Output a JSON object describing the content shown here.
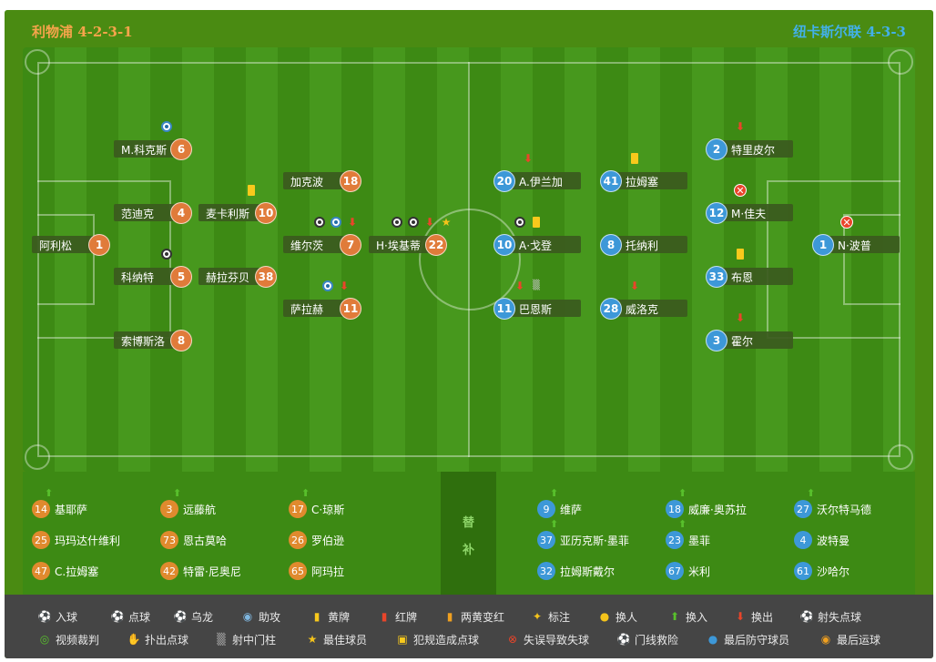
{
  "header": {
    "home": "利物浦 4-2-3-1",
    "away": "纽卡斯尔联 4-3-3"
  },
  "home_players": [
    {
      "num": "1",
      "name": "阿利松",
      "events": []
    },
    {
      "num": "6",
      "name": "M.科克斯",
      "events": [
        "assist"
      ]
    },
    {
      "num": "4",
      "name": "范迪克",
      "events": []
    },
    {
      "num": "5",
      "name": "科纳特",
      "events": [
        "goal"
      ]
    },
    {
      "num": "8",
      "name": "索博斯洛",
      "events": []
    },
    {
      "num": "10",
      "name": "麦卡利斯",
      "events": [
        "yellow"
      ]
    },
    {
      "num": "38",
      "name": "赫拉芬贝",
      "events": []
    },
    {
      "num": "18",
      "name": "加克波",
      "events": []
    },
    {
      "num": "7",
      "name": "维尔茨",
      "events": [
        "goal",
        "assist",
        "out"
      ]
    },
    {
      "num": "11",
      "name": "萨拉赫",
      "events": [
        "assist",
        "out"
      ]
    },
    {
      "num": "22",
      "name": "H·埃基蒂",
      "events": [
        "goal",
        "goal",
        "out",
        "star"
      ]
    }
  ],
  "away_players": [
    {
      "num": "1",
      "name": "N·波普",
      "events": [
        "error"
      ]
    },
    {
      "num": "2",
      "name": "特里皮尔",
      "events": [
        "out"
      ]
    },
    {
      "num": "12",
      "name": "M·佳夫",
      "events": [
        "error"
      ]
    },
    {
      "num": "33",
      "name": "布恩",
      "events": [
        "yellow"
      ]
    },
    {
      "num": "3",
      "name": "霍尔",
      "events": [
        "out"
      ]
    },
    {
      "num": "41",
      "name": "拉姆塞",
      "events": [
        "yellow"
      ]
    },
    {
      "num": "8",
      "name": "托纳利",
      "events": []
    },
    {
      "num": "28",
      "name": "威洛克",
      "events": [
        "out"
      ]
    },
    {
      "num": "20",
      "name": "A.伊兰加",
      "events": [
        "out"
      ]
    },
    {
      "num": "10",
      "name": "A·戈登",
      "events": [
        "goal",
        "yellow"
      ]
    },
    {
      "num": "11",
      "name": "巴恩斯",
      "events": [
        "out",
        "post"
      ]
    }
  ],
  "subs": {
    "title": [
      "替",
      "补"
    ],
    "home": [
      {
        "num": "14",
        "name": "基耶萨",
        "in": true
      },
      {
        "num": "3",
        "name": "远藤航",
        "in": true
      },
      {
        "num": "17",
        "name": "C·琼斯",
        "in": true
      },
      {
        "num": "25",
        "name": "玛玛达什维利",
        "in": false
      },
      {
        "num": "73",
        "name": "恩古莫哈",
        "in": false
      },
      {
        "num": "26",
        "name": "罗伯逊",
        "in": false
      },
      {
        "num": "47",
        "name": "C.拉姆塞",
        "in": false
      },
      {
        "num": "42",
        "name": "特雷·尼奥尼",
        "in": false
      },
      {
        "num": "65",
        "name": "阿玛拉",
        "in": false
      }
    ],
    "away": [
      {
        "num": "9",
        "name": "维萨",
        "in": true
      },
      {
        "num": "18",
        "name": "威廉·奥苏拉",
        "in": true
      },
      {
        "num": "27",
        "name": "沃尔特马德",
        "in": true
      },
      {
        "num": "37",
        "name": "亚历克斯·墨菲",
        "in": true
      },
      {
        "num": "23",
        "name": "墨菲",
        "in": true
      },
      {
        "num": "4",
        "name": "波特曼",
        "in": false
      },
      {
        "num": "32",
        "name": "拉姆斯戴尔",
        "in": false
      },
      {
        "num": "67",
        "name": "米利",
        "in": false
      },
      {
        "num": "61",
        "name": "沙哈尔",
        "in": false
      }
    ]
  },
  "legend": [
    {
      "icon": "goal",
      "label": "入球"
    },
    {
      "icon": "penalty",
      "label": "点球"
    },
    {
      "icon": "own-goal",
      "label": "乌龙"
    },
    {
      "icon": "assist",
      "label": "助攻"
    },
    {
      "icon": "yellow",
      "label": "黄牌"
    },
    {
      "icon": "red",
      "label": "红牌"
    },
    {
      "icon": "two-yellow",
      "label": "两黄变红"
    },
    {
      "icon": "mark",
      "label": "标注"
    },
    {
      "icon": "sub",
      "label": "换人"
    },
    {
      "icon": "in",
      "label": "换入"
    },
    {
      "icon": "out",
      "label": "换出"
    },
    {
      "icon": "pen-miss",
      "label": "射失点球"
    },
    {
      "icon": "var",
      "label": "视频裁判"
    },
    {
      "icon": "pen-save",
      "label": "扑出点球"
    },
    {
      "icon": "post",
      "label": "射中门柱"
    },
    {
      "icon": "star",
      "label": "最佳球员"
    },
    {
      "icon": "foul-pen",
      "label": "犯规造成点球"
    },
    {
      "icon": "error",
      "label": "失误导致失球"
    },
    {
      "icon": "line-save",
      "label": "门线救险"
    },
    {
      "icon": "last-man",
      "label": "最后防守球员"
    },
    {
      "icon": "last-shot",
      "label": "最后运球"
    }
  ]
}
